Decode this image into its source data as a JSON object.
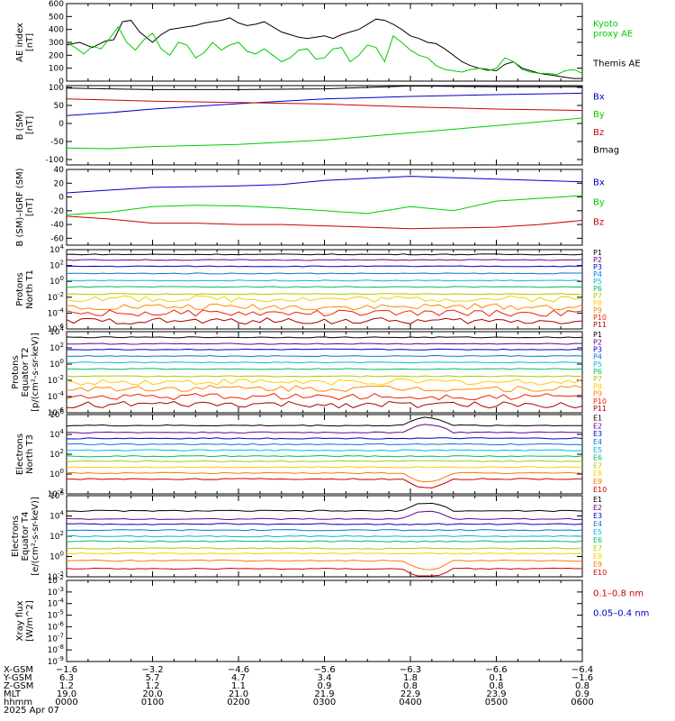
{
  "colors": {
    "black": "#000000",
    "blue": "#0000cc",
    "green": "#00cc00",
    "red": "#cc0000",
    "P1": "#000000",
    "P2": "#6a0090",
    "P3": "#0000cc",
    "P4": "#0077dd",
    "P5": "#00bbdd",
    "P6": "#00bb66",
    "P7": "#aacc00",
    "P8": "#ffcc00",
    "P9": "#ff8800",
    "P10": "#ee2200",
    "P11": "#aa0000",
    "E1": "#000000",
    "E2": "#6a0090",
    "E3": "#0000cc",
    "E4": "#0077dd",
    "E5": "#00bbdd",
    "E6": "#00bb66",
    "E7": "#aacc00",
    "E8": "#ffcc00",
    "E9": "#ff7700",
    "E10": "#cc0000"
  },
  "chart_data": [
    {
      "id": "ae",
      "type": "line",
      "ylabel": [
        "AE index",
        "[nT]"
      ],
      "ylim": [
        0,
        600
      ],
      "yticks": [
        0,
        100,
        200,
        300,
        400,
        500,
        600
      ],
      "x_hours": [
        0,
        6
      ],
      "legend": [
        {
          "lines": [
            "Kyoto",
            "proxy AE"
          ],
          "color": "green"
        },
        {
          "lines": [
            "Themis AE"
          ],
          "color": "black"
        }
      ],
      "series": [
        {
          "name": "Themis AE",
          "color": "black",
          "x": [
            0,
            0.15,
            0.3,
            0.45,
            0.55,
            0.65,
            0.75,
            0.85,
            1.0,
            1.1,
            1.2,
            1.3,
            1.4,
            1.5,
            1.6,
            1.7,
            1.8,
            1.9,
            2.0,
            2.1,
            2.2,
            2.3,
            2.4,
            2.5,
            2.6,
            2.7,
            2.8,
            2.9,
            3.0,
            3.1,
            3.2,
            3.3,
            3.4,
            3.5,
            3.6,
            3.7,
            3.8,
            3.9,
            4.0,
            4.1,
            4.2,
            4.3,
            4.4,
            4.5,
            4.6,
            4.7,
            4.8,
            4.9,
            5.0,
            5.1,
            5.2,
            5.3,
            5.4,
            5.5,
            5.6,
            5.7,
            5.8,
            5.9,
            6.0
          ],
          "y": [
            280,
            300,
            260,
            310,
            320,
            460,
            470,
            380,
            300,
            360,
            400,
            410,
            420,
            430,
            450,
            460,
            470,
            490,
            450,
            430,
            440,
            460,
            420,
            380,
            360,
            340,
            330,
            340,
            350,
            330,
            360,
            380,
            400,
            440,
            480,
            470,
            440,
            400,
            350,
            330,
            300,
            290,
            250,
            200,
            150,
            120,
            100,
            90,
            80,
            130,
            150,
            100,
            80,
            60,
            50,
            40,
            30,
            20,
            20
          ]
        },
        {
          "name": "Kyoto proxy AE",
          "color": "green",
          "x": [
            0,
            0.1,
            0.2,
            0.3,
            0.4,
            0.5,
            0.6,
            0.7,
            0.8,
            0.9,
            1.0,
            1.1,
            1.2,
            1.3,
            1.4,
            1.5,
            1.6,
            1.7,
            1.8,
            1.9,
            2.0,
            2.1,
            2.2,
            2.3,
            2.4,
            2.5,
            2.6,
            2.7,
            2.8,
            2.9,
            3.0,
            3.1,
            3.2,
            3.3,
            3.4,
            3.5,
            3.6,
            3.7,
            3.8,
            3.9,
            4.0,
            4.1,
            4.2,
            4.3,
            4.4,
            4.5,
            4.6,
            4.7,
            4.8,
            4.9,
            5.0,
            5.1,
            5.2,
            5.3,
            5.4,
            5.5,
            5.6,
            5.7,
            5.8,
            5.9,
            6.0
          ],
          "y": [
            300,
            260,
            210,
            270,
            250,
            330,
            420,
            300,
            240,
            320,
            370,
            250,
            200,
            300,
            280,
            180,
            220,
            300,
            240,
            280,
            300,
            230,
            210,
            250,
            200,
            150,
            180,
            240,
            250,
            170,
            180,
            250,
            260,
            150,
            200,
            280,
            260,
            150,
            350,
            300,
            240,
            200,
            180,
            120,
            90,
            80,
            70,
            90,
            100,
            80,
            100,
            180,
            150,
            90,
            70,
            60,
            60,
            50,
            80,
            90,
            60
          ]
        }
      ]
    },
    {
      "id": "bsm",
      "type": "line",
      "ylabel": [
        "B (SM)",
        "[nT]"
      ],
      "ylim": [
        -115,
        105
      ],
      "yticks": [
        -100,
        -50,
        0,
        50,
        100
      ],
      "x_hours": [
        0,
        6
      ],
      "legend": [
        {
          "lines": [
            "Bx"
          ],
          "color": "blue"
        },
        {
          "lines": [
            "By"
          ],
          "color": "green"
        },
        {
          "lines": [
            "Bz"
          ],
          "color": "red"
        },
        {
          "lines": [
            "Bmag"
          ],
          "color": "black"
        }
      ],
      "series": [
        {
          "name": "Bmag",
          "color": "black",
          "x": [
            0,
            1,
            2,
            3,
            4,
            5,
            6
          ],
          "y": [
            98,
            94,
            94,
            96,
            104,
            102,
            102
          ]
        },
        {
          "name": "Bx",
          "color": "blue",
          "x": [
            0,
            0.5,
            1,
            2,
            3,
            4,
            5,
            6
          ],
          "y": [
            22,
            30,
            40,
            55,
            68,
            75,
            80,
            84
          ]
        },
        {
          "name": "By",
          "color": "green",
          "x": [
            0,
            0.5,
            1,
            2,
            3,
            4,
            5,
            6
          ],
          "y": [
            -68,
            -70,
            -64,
            -58,
            -46,
            -26,
            -6,
            15
          ]
        },
        {
          "name": "Bz",
          "color": "red",
          "x": [
            0,
            1,
            2,
            3,
            4,
            5,
            6
          ],
          "y": [
            68,
            62,
            58,
            54,
            46,
            40,
            36
          ]
        }
      ]
    },
    {
      "id": "bigrf",
      "type": "line",
      "ylabel": [
        "B (SM)–IGRF (SM)",
        "[nT]"
      ],
      "ylim": [
        -70,
        40
      ],
      "yticks": [
        -60,
        -40,
        -20,
        0,
        20,
        40
      ],
      "x_hours": [
        0,
        6
      ],
      "legend": [
        {
          "lines": [
            "Bx"
          ],
          "color": "blue"
        },
        {
          "lines": [
            "By"
          ],
          "color": "green"
        },
        {
          "lines": [
            "Bz"
          ],
          "color": "red"
        }
      ],
      "series": [
        {
          "name": "Bx",
          "color": "blue",
          "x": [
            0,
            0.5,
            1,
            1.5,
            2,
            2.5,
            3,
            3.5,
            4,
            4.5,
            5,
            5.5,
            6
          ],
          "y": [
            6,
            10,
            14,
            15,
            16,
            18,
            24,
            27,
            30,
            28,
            26,
            24,
            22
          ]
        },
        {
          "name": "By",
          "color": "green",
          "x": [
            0,
            0.5,
            1,
            1.5,
            2,
            2.5,
            3,
            3.5,
            4,
            4.5,
            5,
            5.5,
            6
          ],
          "y": [
            -26,
            -22,
            -14,
            -12,
            -13,
            -16,
            -20,
            -24,
            -14,
            -20,
            -6,
            -2,
            2
          ]
        },
        {
          "name": "Bz",
          "color": "red",
          "x": [
            0,
            0.5,
            1,
            1.5,
            2,
            2.5,
            3,
            3.5,
            4,
            4.5,
            5,
            5.5,
            6
          ],
          "y": [
            -28,
            -32,
            -38,
            -38,
            -40,
            -40,
            -42,
            -44,
            -46,
            -45,
            -44,
            -40,
            -34
          ]
        }
      ]
    },
    {
      "id": "pn",
      "type": "line",
      "log": true,
      "ylabel": [
        "Protons",
        "North T1"
      ],
      "ylim_exp": [
        -6,
        4
      ],
      "ytick_exp": [
        -6,
        -4,
        -2,
        0,
        2,
        4
      ],
      "x_hours": [
        0,
        6
      ],
      "legend": [
        {
          "lines": [
            "P1"
          ],
          "color": "P1"
        },
        {
          "lines": [
            "P2"
          ],
          "color": "P2"
        },
        {
          "lines": [
            "P3"
          ],
          "color": "P3"
        },
        {
          "lines": [
            "P4"
          ],
          "color": "P4"
        },
        {
          "lines": [
            "P5"
          ],
          "color": "P5"
        },
        {
          "lines": [
            "P6"
          ],
          "color": "P6"
        },
        {
          "lines": [
            "P7"
          ],
          "color": "P7"
        },
        {
          "lines": [
            "P8"
          ],
          "color": "P8"
        },
        {
          "lines": [
            "P9"
          ],
          "color": "P9"
        },
        {
          "lines": [
            "P10"
          ],
          "color": "P10"
        },
        {
          "lines": [
            "P11"
          ],
          "color": "P11"
        }
      ],
      "levels": [
        3.4,
        2.7,
        1.9,
        1.0,
        0.1,
        -0.7,
        -1.6,
        -2.2,
        -3.2,
        -4.0,
        -5.0
      ]
    },
    {
      "id": "pe",
      "type": "line",
      "log": true,
      "ylabel": [
        "Protons",
        "Equator T2",
        "[p/(cm²-s-sr-keV)]"
      ],
      "ylim_exp": [
        -6,
        4
      ],
      "ytick_exp": [
        -6,
        -4,
        -2,
        0,
        2,
        4
      ],
      "x_hours": [
        0,
        6
      ],
      "legend": [
        {
          "lines": [
            "P1"
          ],
          "color": "P1"
        },
        {
          "lines": [
            "P2"
          ],
          "color": "P2"
        },
        {
          "lines": [
            "P3"
          ],
          "color": "P3"
        },
        {
          "lines": [
            "P4"
          ],
          "color": "P4"
        },
        {
          "lines": [
            "P5"
          ],
          "color": "P5"
        },
        {
          "lines": [
            "P6"
          ],
          "color": "P6"
        },
        {
          "lines": [
            "P7"
          ],
          "color": "P7"
        },
        {
          "lines": [
            "P8"
          ],
          "color": "P8"
        },
        {
          "lines": [
            "P9"
          ],
          "color": "P9"
        },
        {
          "lines": [
            "P10"
          ],
          "color": "P10"
        },
        {
          "lines": [
            "P11"
          ],
          "color": "P11"
        }
      ],
      "levels": [
        3.3,
        2.5,
        1.8,
        1.0,
        0.2,
        -0.6,
        -1.5,
        -2.2,
        -3.0,
        -4.0,
        -5.0
      ]
    },
    {
      "id": "en",
      "type": "line",
      "log": true,
      "ylabel": [
        "Electrons",
        "North T3"
      ],
      "ylim_exp": [
        -2,
        6
      ],
      "ytick_exp": [
        -2,
        0,
        2,
        4,
        6
      ],
      "x_hours": [
        0,
        6
      ],
      "legend": [
        {
          "lines": [
            "E1"
          ],
          "color": "E1"
        },
        {
          "lines": [
            "E2"
          ],
          "color": "E2"
        },
        {
          "lines": [
            "E3"
          ],
          "color": "E3"
        },
        {
          "lines": [
            "E4"
          ],
          "color": "E4"
        },
        {
          "lines": [
            "E5"
          ],
          "color": "E5"
        },
        {
          "lines": [
            "E6"
          ],
          "color": "E6"
        },
        {
          "lines": [
            "E7"
          ],
          "color": "E7"
        },
        {
          "lines": [
            "E8"
          ],
          "color": "E8"
        },
        {
          "lines": [
            "E9"
          ],
          "color": "E9"
        },
        {
          "lines": [
            "E10"
          ],
          "color": "E10"
        }
      ],
      "levels": [
        4.9,
        4.2,
        3.6,
        3.0,
        2.4,
        1.8,
        1.3,
        0.7,
        0.1,
        -0.5
      ]
    },
    {
      "id": "ee",
      "type": "line",
      "log": true,
      "ylabel": [
        "Electrons",
        "Equator T4",
        "[e/(cm²-s-sr-keV)]"
      ],
      "ylim_exp": [
        -2,
        6
      ],
      "ytick_exp": [
        -2,
        0,
        2,
        4,
        6
      ],
      "x_hours": [
        0,
        6
      ],
      "legend": [
        {
          "lines": [
            "E1"
          ],
          "color": "E1"
        },
        {
          "lines": [
            "E2"
          ],
          "color": "E2"
        },
        {
          "lines": [
            "E3"
          ],
          "color": "E3"
        },
        {
          "lines": [
            "E4"
          ],
          "color": "E4"
        },
        {
          "lines": [
            "E5"
          ],
          "color": "E5"
        },
        {
          "lines": [
            "E6"
          ],
          "color": "E6"
        },
        {
          "lines": [
            "E7"
          ],
          "color": "E7"
        },
        {
          "lines": [
            "E8"
          ],
          "color": "E8"
        },
        {
          "lines": [
            "E9"
          ],
          "color": "E9"
        },
        {
          "lines": [
            "E10"
          ],
          "color": "E10"
        }
      ],
      "levels": [
        4.5,
        3.7,
        3.2,
        2.6,
        2.0,
        1.5,
        0.8,
        0.3,
        -0.4,
        -1.2
      ]
    },
    {
      "id": "xray",
      "type": "line",
      "log": true,
      "ylabel": [
        "Xray flux",
        "[W/m^2]"
      ],
      "ylim_exp": [
        -9,
        -2
      ],
      "ytick_exp": [
        -9,
        -8,
        -7,
        -6,
        -5,
        -4,
        -3,
        -2
      ],
      "x_hours": [
        0,
        6
      ],
      "legend": [
        {
          "lines": [
            "0.1–0.8 nm"
          ],
          "color": "red"
        },
        {
          "lines": [
            "0.05–0.4 nm"
          ],
          "color": "blue"
        }
      ],
      "levels": []
    }
  ],
  "ephemeris": {
    "rows": [
      {
        "label": "X-GSM",
        "values": [
          "−1.6",
          "−3.2",
          "−4.6",
          "−5.6",
          "−6.3",
          "−6.6",
          "−6.4"
        ]
      },
      {
        "label": "Y-GSM",
        "values": [
          "6.3",
          "5.7",
          "4.7",
          "3.4",
          "1.8",
          "0.1",
          "−1.6"
        ]
      },
      {
        "label": "Z-GSM",
        "values": [
          "1.2",
          "1.2",
          "1.1",
          "0.9",
          "0.8",
          "0.8",
          "0.8"
        ]
      },
      {
        "label": "MLT",
        "values": [
          "19.0",
          "20.0",
          "21.0",
          "21.9",
          "22.9",
          "23.9",
          "0.9"
        ]
      },
      {
        "label": "hhmm",
        "values": [
          "0000",
          "0100",
          "0200",
          "0300",
          "0400",
          "0500",
          "0600"
        ]
      }
    ],
    "date": "2025 Apr 07"
  }
}
